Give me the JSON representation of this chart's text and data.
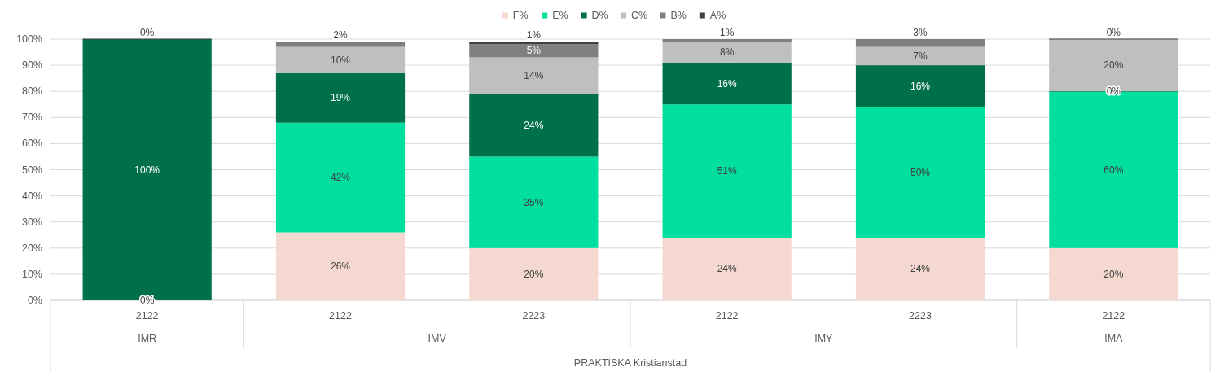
{
  "chart_data": {
    "type": "bar",
    "stacked": true,
    "categories": [
      "2122",
      "2122",
      "2223",
      "2122",
      "2223",
      "2122"
    ],
    "xlabel": "PRAKTISKA Kristianstad",
    "annotations": [
      "IMR",
      "IMV",
      "IMY",
      "IMA"
    ],
    "series": [
      {
        "name": "F%",
        "color": "#f5d9d0",
        "values": [
          0,
          26,
          20,
          24,
          24,
          20
        ],
        "value_labels": [
          "0%",
          "26%",
          "20%",
          "24%",
          "24%",
          "20%"
        ]
      },
      {
        "name": "E%",
        "color": "#00df9f",
        "values": [
          0,
          42,
          35,
          51,
          50,
          60
        ],
        "value_labels": [
          null,
          "42%",
          "35%",
          "51%",
          "50%",
          "60%"
        ]
      },
      {
        "name": "D%",
        "color": "#00704a",
        "values": [
          100,
          19,
          24,
          16,
          16,
          0
        ],
        "value_labels": [
          "100%",
          "19%",
          "24%",
          "16%",
          "16%",
          "0%"
        ]
      },
      {
        "name": "C%",
        "color": "#bfbfbf",
        "values": [
          0,
          10,
          14,
          8,
          7,
          20
        ],
        "value_labels": [
          null,
          "10%",
          "14%",
          "8%",
          "7%",
          "20%"
        ]
      },
      {
        "name": "B%",
        "color": "#7f7f7f",
        "values": [
          0,
          2,
          5,
          1,
          3,
          0
        ],
        "value_labels": [
          null,
          "2%",
          "5%",
          "1%",
          "3%",
          null
        ]
      },
      {
        "name": "A%",
        "color": "#404040",
        "values": [
          0,
          0,
          1,
          0,
          0,
          0
        ],
        "value_labels": [
          "0%",
          null,
          "1%",
          null,
          null,
          "0%"
        ]
      }
    ],
    "ylim": [
      0,
      100
    ],
    "yticks": [
      {
        "value": 0,
        "label": "0%"
      },
      {
        "value": 10,
        "label": "10%"
      },
      {
        "value": 20,
        "label": "20%"
      },
      {
        "value": 30,
        "label": "30%"
      },
      {
        "value": 40,
        "label": "40%"
      },
      {
        "value": 50,
        "label": "50%"
      },
      {
        "value": 60,
        "label": "60%"
      },
      {
        "value": 70,
        "label": "70%"
      },
      {
        "value": 80,
        "label": "80%"
      },
      {
        "value": 90,
        "label": "90%"
      },
      {
        "value": 100,
        "label": "100%"
      }
    ],
    "grid": "y",
    "legend": "top"
  }
}
